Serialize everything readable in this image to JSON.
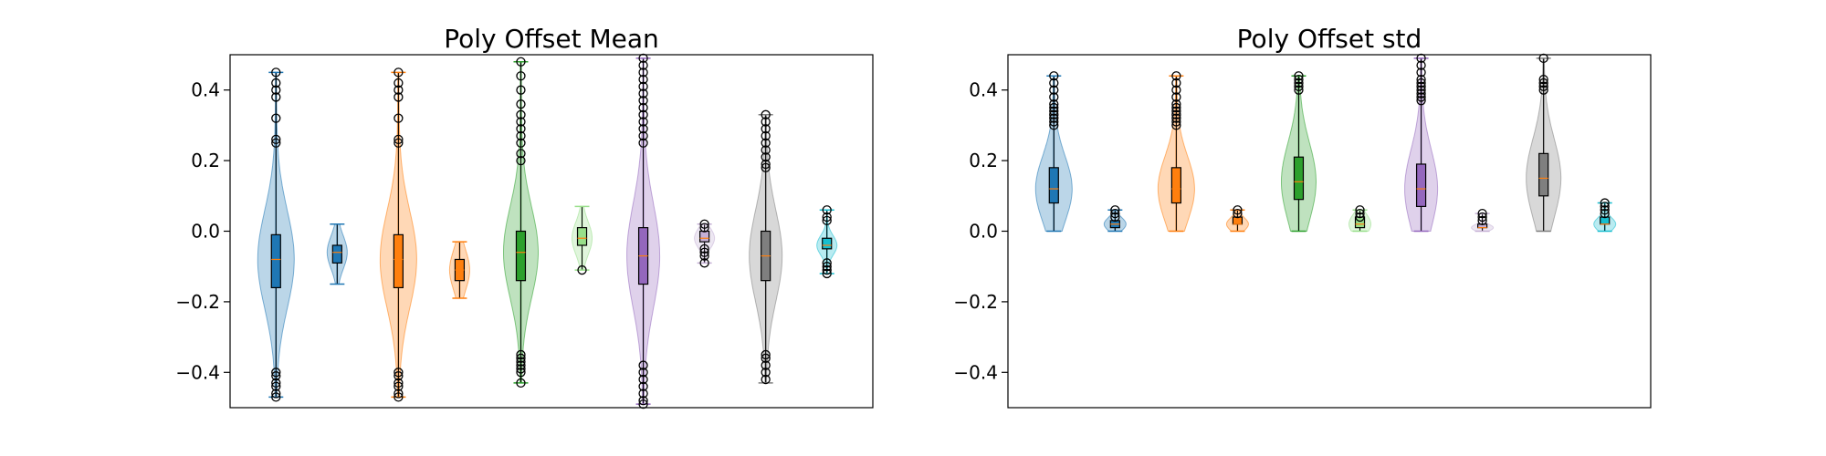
{
  "chart_data": [
    {
      "type": "violin",
      "title": "Poly Offset Mean",
      "ylim": [
        -0.5,
        0.5
      ],
      "yticks": [
        -0.4,
        -0.2,
        0.0,
        0.2,
        0.4
      ],
      "ytick_labels": [
        "−0.4",
        "−0.2",
        "0.0",
        "0.2",
        "0.4"
      ],
      "grid": false,
      "series": [
        {
          "color": "#1f77b4",
          "min": -0.47,
          "q1": -0.16,
          "median": -0.08,
          "q3": -0.01,
          "max": 0.45,
          "spread": 1.0,
          "outliers": [
            0.45,
            0.42,
            0.4,
            0.38,
            0.32,
            0.26,
            0.25,
            -0.4,
            -0.41,
            -0.43,
            -0.44,
            -0.46,
            -0.47
          ]
        },
        {
          "color": "#1f77b4",
          "min": -0.15,
          "q1": -0.09,
          "median": -0.06,
          "q3": -0.04,
          "max": 0.02,
          "spread": 0.55,
          "outliers": []
        },
        {
          "color": "#ff7f0e",
          "min": -0.47,
          "q1": -0.16,
          "median": -0.08,
          "q3": -0.01,
          "max": 0.45,
          "spread": 1.0,
          "outliers": [
            0.45,
            0.42,
            0.4,
            0.38,
            0.32,
            0.26,
            0.25,
            -0.4,
            -0.41,
            -0.43,
            -0.44,
            -0.46,
            -0.47
          ]
        },
        {
          "color": "#ff7f0e",
          "min": -0.19,
          "q1": -0.14,
          "median": -0.11,
          "q3": -0.08,
          "max": -0.03,
          "spread": 0.55,
          "outliers": []
        },
        {
          "color": "#2ca02c",
          "min": -0.43,
          "q1": -0.14,
          "median": -0.06,
          "q3": 0.0,
          "max": 0.48,
          "spread": 0.95,
          "outliers": [
            0.48,
            0.44,
            0.4,
            0.36,
            0.33,
            0.31,
            0.29,
            0.27,
            0.25,
            0.22,
            0.2,
            -0.35,
            -0.36,
            -0.37,
            -0.38,
            -0.39,
            -0.4,
            -0.43
          ]
        },
        {
          "color": "#98df8a",
          "min": -0.11,
          "q1": -0.04,
          "median": -0.02,
          "q3": 0.01,
          "max": 0.07,
          "spread": 0.55,
          "outliers": [
            -0.11
          ]
        },
        {
          "color": "#9467bd",
          "min": -0.49,
          "q1": -0.15,
          "median": -0.07,
          "q3": 0.01,
          "max": 0.49,
          "spread": 0.9,
          "outliers": [
            0.49,
            0.47,
            0.45,
            0.43,
            0.41,
            0.39,
            0.37,
            0.35,
            0.33,
            0.31,
            0.29,
            0.27,
            0.25,
            -0.38,
            -0.4,
            -0.42,
            -0.44,
            -0.46,
            -0.48,
            -0.49
          ]
        },
        {
          "color": "#c5b0d5",
          "min": -0.09,
          "q1": -0.03,
          "median": -0.02,
          "q3": 0.0,
          "max": 0.02,
          "spread": 0.55,
          "outliers": [
            0.02,
            0.01,
            -0.05,
            -0.06,
            -0.07,
            -0.09
          ]
        },
        {
          "color": "#7f7f7f",
          "min": -0.43,
          "q1": -0.14,
          "median": -0.07,
          "q3": 0.0,
          "max": 0.33,
          "spread": 0.9,
          "outliers": [
            0.33,
            0.31,
            0.29,
            0.27,
            0.25,
            0.23,
            0.21,
            0.19,
            0.18,
            -0.35,
            -0.36,
            -0.38,
            -0.4,
            -0.42
          ]
        },
        {
          "color": "#17becf",
          "min": -0.12,
          "q1": -0.05,
          "median": -0.04,
          "q3": -0.02,
          "max": 0.06,
          "spread": 0.55,
          "outliers": [
            0.06,
            0.04,
            0.03,
            -0.09,
            -0.1,
            -0.11,
            -0.12
          ]
        }
      ]
    },
    {
      "type": "violin",
      "title": "Poly Offset std",
      "ylim": [
        -0.5,
        0.5
      ],
      "yticks": [
        -0.4,
        -0.2,
        0.0,
        0.2,
        0.4
      ],
      "ytick_labels": [
        "−0.4",
        "−0.2",
        "0.0",
        "0.2",
        "0.4"
      ],
      "grid": false,
      "series": [
        {
          "color": "#1f77b4",
          "min": 0.0,
          "q1": 0.08,
          "median": 0.12,
          "q3": 0.18,
          "max": 0.44,
          "spread": 1.0,
          "outliers": [
            0.44,
            0.42,
            0.4,
            0.38,
            0.36,
            0.35,
            0.34,
            0.33,
            0.32,
            0.31,
            0.3
          ]
        },
        {
          "color": "#1f77b4",
          "min": 0.0,
          "q1": 0.01,
          "median": 0.02,
          "q3": 0.03,
          "max": 0.06,
          "spread": 0.6,
          "outliers": [
            0.06,
            0.05,
            0.04
          ]
        },
        {
          "color": "#ff7f0e",
          "min": 0.0,
          "q1": 0.08,
          "median": 0.12,
          "q3": 0.18,
          "max": 0.44,
          "spread": 1.0,
          "outliers": [
            0.44,
            0.42,
            0.4,
            0.38,
            0.36,
            0.35,
            0.34,
            0.33,
            0.32,
            0.31,
            0.3
          ]
        },
        {
          "color": "#ff7f0e",
          "min": 0.0,
          "q1": 0.02,
          "median": 0.02,
          "q3": 0.04,
          "max": 0.06,
          "spread": 0.6,
          "outliers": [
            0.06,
            0.05
          ]
        },
        {
          "color": "#2ca02c",
          "min": 0.0,
          "q1": 0.09,
          "median": 0.14,
          "q3": 0.21,
          "max": 0.44,
          "spread": 0.95,
          "outliers": [
            0.44,
            0.43,
            0.42,
            0.41,
            0.4
          ]
        },
        {
          "color": "#98df8a",
          "min": 0.0,
          "q1": 0.01,
          "median": 0.02,
          "q3": 0.04,
          "max": 0.06,
          "spread": 0.6,
          "outliers": [
            0.06,
            0.05,
            0.04
          ]
        },
        {
          "color": "#9467bd",
          "min": 0.0,
          "q1": 0.07,
          "median": 0.12,
          "q3": 0.19,
          "max": 0.49,
          "spread": 0.9,
          "outliers": [
            0.49,
            0.47,
            0.45,
            0.43,
            0.42,
            0.41,
            0.4,
            0.39,
            0.38,
            0.37
          ]
        },
        {
          "color": "#c5b0d5",
          "min": 0.0,
          "q1": 0.01,
          "median": 0.01,
          "q3": 0.02,
          "max": 0.05,
          "spread": 0.6,
          "outliers": [
            0.05,
            0.04,
            0.03
          ]
        },
        {
          "color": "#7f7f7f",
          "min": 0.0,
          "q1": 0.1,
          "median": 0.15,
          "q3": 0.22,
          "max": 0.49,
          "spread": 0.95,
          "outliers": [
            0.49,
            0.43,
            0.42,
            0.41,
            0.4
          ]
        },
        {
          "color": "#17becf",
          "min": 0.0,
          "q1": 0.02,
          "median": 0.02,
          "q3": 0.04,
          "max": 0.08,
          "spread": 0.6,
          "outliers": [
            0.08,
            0.07,
            0.06,
            0.05
          ]
        }
      ]
    }
  ]
}
